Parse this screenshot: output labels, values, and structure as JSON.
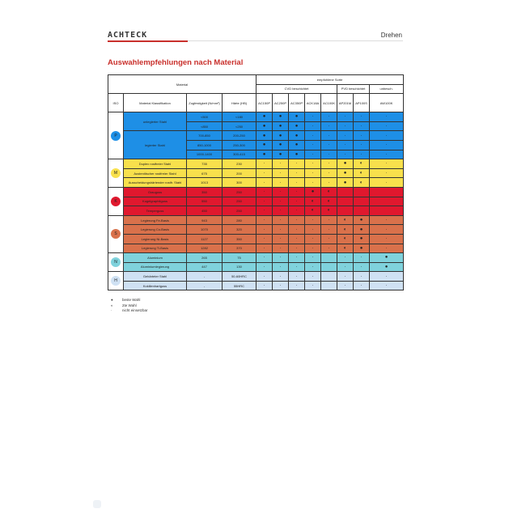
{
  "header": {
    "logo": "ACHTECK",
    "section": "Drehen"
  },
  "title": "Auswahlempfehlungen nach Material",
  "table": {
    "material": "Material",
    "recommended": "empfohlene Sorte",
    "cvd": "CVD beschichtet",
    "pvd": "PVD beschichtet",
    "uncoated": "unbesch.",
    "columns": [
      "ISO",
      "Material Klassifikation",
      "Zugfestigkeit (N/mm²)",
      "Härte (HB)"
    ],
    "grades": [
      "AC150P",
      "AC250P",
      "AC350P",
      "ACK18A",
      "AC100K",
      "AP201M",
      "AP100S",
      "AW100K"
    ],
    "groups": [
      {
        "iso": "P",
        "color": "#1e8fe6",
        "rows": [
          {
            "material": "unlegierter Stahl",
            "span": 2,
            "strength": "<500",
            "hardness": "<180",
            "marks": [
              "●",
              "●",
              "●",
              "·",
              "·",
              "·",
              "·",
              "·"
            ]
          },
          {
            "strength": "<850",
            "hardness": "<250",
            "marks": [
              "●",
              "●",
              "●",
              "·",
              "·",
              "·",
              "·",
              "·"
            ]
          },
          {
            "material": "legierter Stahl",
            "span": 3,
            "strength": "700-850",
            "hardness": "200-250",
            "marks": [
              "●",
              "●",
              "●",
              "·",
              "·",
              "·",
              "·",
              "·"
            ]
          },
          {
            "strength": "850-1000",
            "hardness": "250-300",
            "marks": [
              "●",
              "●",
              "●",
              "·",
              "·",
              "·",
              "·",
              "·"
            ]
          },
          {
            "strength": "1000-1400",
            "hardness": "300-415",
            "marks": [
              "●",
              "●",
              "●",
              "·",
              "·",
              "·",
              "·",
              "·"
            ]
          }
        ]
      },
      {
        "iso": "M",
        "color": "#f8e04c",
        "rows": [
          {
            "material": "Duplex rostfreier Stahl",
            "span": 1,
            "strength": "735",
            "hardness": "230",
            "marks": [
              "·",
              "·",
              "·",
              "·",
              "·",
              "●",
              "◐",
              "·"
            ]
          },
          {
            "material": "Austenitischer rostfreier Stahl",
            "span": 1,
            "strength": "675",
            "hardness": "200",
            "marks": [
              "·",
              "·",
              "·",
              "·",
              "·",
              "●",
              "◐",
              "·"
            ]
          },
          {
            "material": "Ausscheidungshärtender rostfr. Stahl",
            "span": 1,
            "strength": "1013",
            "hardness": "300",
            "marks": [
              "·",
              "·",
              "·",
              "·",
              "·",
              "●",
              "◐",
              "·"
            ]
          }
        ]
      },
      {
        "iso": "K",
        "color": "#e0182e",
        "rows": [
          {
            "material": "Grauguss",
            "span": 1,
            "strength": "350",
            "hardness": "250",
            "marks": [
              "·",
              "·",
              "·",
              "●",
              "◐",
              "",
              "",
              ""
            ]
          },
          {
            "material": "Kugelgraphitguss",
            "span": 1,
            "strength": "550",
            "hardness": "250",
            "marks": [
              "·",
              "·",
              "·",
              "◐",
              "◐",
              "",
              "",
              ""
            ]
          },
          {
            "material": "Temperguss",
            "span": 1,
            "strength": "450",
            "hardness": "250",
            "marks": [
              "·",
              "·",
              "·",
              "◐",
              "◐",
              "",
              "",
              ""
            ]
          }
        ]
      },
      {
        "iso": "S",
        "color": "#d9714b",
        "rows": [
          {
            "material": "Legierung Fe-Basis",
            "span": 1,
            "strength": "943",
            "hardness": "280",
            "marks": [
              "·",
              "·",
              "·",
              "·",
              "·",
              "◐",
              "●",
              "·"
            ]
          },
          {
            "material": "Legierung Co-Basis",
            "span": 1,
            "strength": "1070",
            "hardness": "320",
            "marks": [
              "·",
              "·",
              "·",
              "·",
              "·",
              "◐",
              "●",
              "·"
            ]
          },
          {
            "material": "Legierung Ni-Basis",
            "span": 1,
            "strength": "1127",
            "hardness": "350",
            "marks": [
              "·",
              "·",
              "·",
              "·",
              "·",
              "◐",
              "●",
              "·"
            ]
          },
          {
            "material": "Legierung Ti-Basis",
            "span": 1,
            "strength": "1282",
            "hardness": "370",
            "marks": [
              "·",
              "·",
              "·",
              "·",
              "·",
              "◐",
              "●",
              "·"
            ]
          }
        ]
      },
      {
        "iso": "N",
        "color": "#7fd2dc",
        "rows": [
          {
            "material": "Aluminium",
            "span": 1,
            "strength": "265",
            "hardness": "75",
            "marks": [
              "·",
              "·",
              "·",
              "·",
              "",
              "·",
              "·",
              "●"
            ]
          },
          {
            "material": "Aluminiumlegierung",
            "span": 1,
            "strength": "447",
            "hardness": "130",
            "marks": [
              "·",
              "·",
              "·",
              "·",
              "",
              "·",
              "·",
              "●"
            ]
          }
        ]
      },
      {
        "iso": "H",
        "color": "#cfe1f3",
        "rows": [
          {
            "material": "Gehärteter Stahl",
            "span": 1,
            "strength": "-",
            "hardness": "50-60HRC",
            "marks": [
              "·",
              "·",
              "·",
              "·",
              "",
              "·",
              "·",
              "·"
            ]
          },
          {
            "material": "Kokillenhartguss",
            "span": 1,
            "strength": "-",
            "hardness": "55HRC",
            "marks": [
              "·",
              "·",
              "·",
              "·",
              "",
              "·",
              "·",
              "·"
            ]
          }
        ]
      }
    ]
  },
  "legend": [
    {
      "symbol": "●",
      "label": "beste Wahl"
    },
    {
      "symbol": "◐",
      "label": "2te Wahl"
    },
    {
      "symbol": "·",
      "label": "nicht einsetzbar"
    }
  ]
}
